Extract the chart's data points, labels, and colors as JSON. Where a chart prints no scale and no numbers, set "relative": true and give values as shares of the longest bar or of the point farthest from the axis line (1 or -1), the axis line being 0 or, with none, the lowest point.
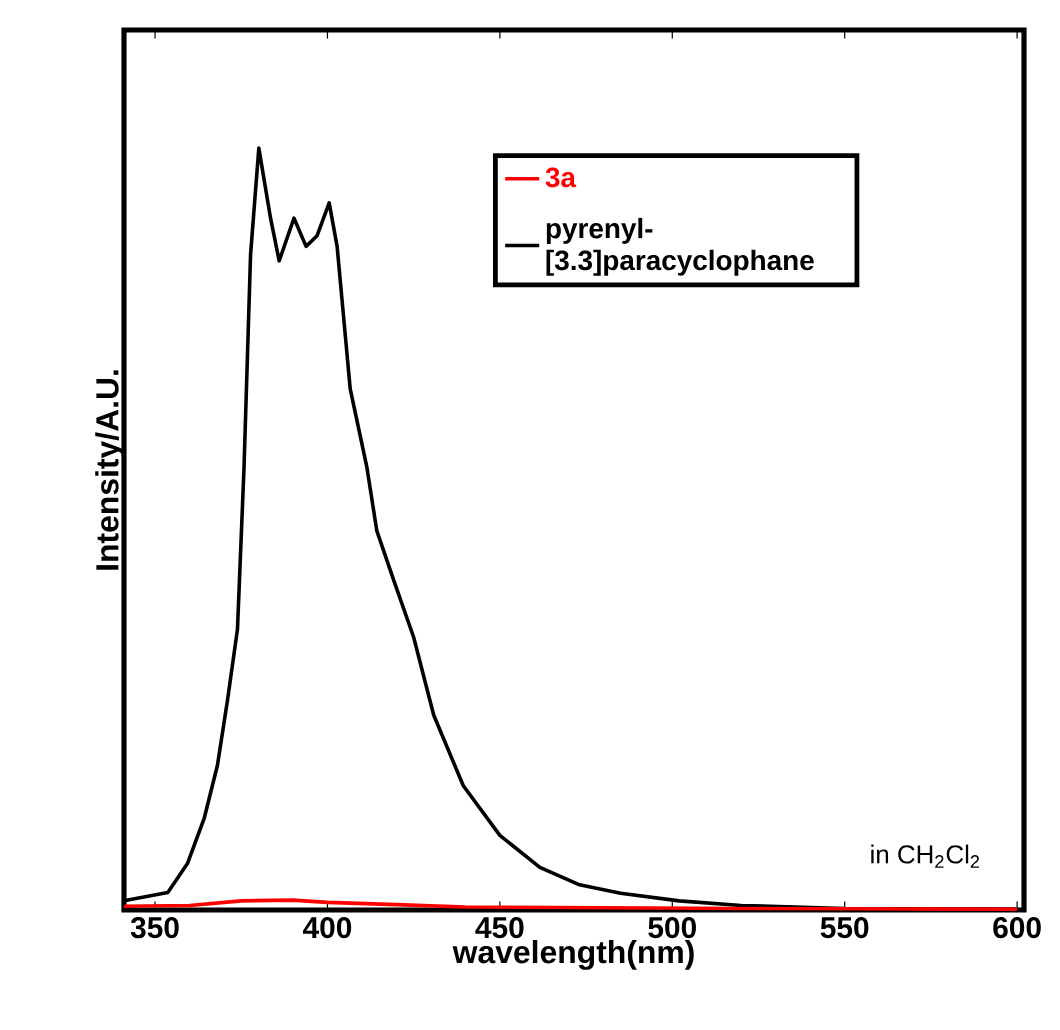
{
  "chart_data": {
    "type": "line",
    "xlabel": "wavelength(nm)",
    "ylabel": "Intensity/A.U.",
    "relative": true,
    "xlim": [
      341,
      602
    ],
    "xticks": [
      350,
      400,
      450,
      500,
      550,
      600
    ],
    "legend": "top right",
    "marker": "none",
    "line_style": "solid",
    "grid": false,
    "annotations": [
      "in CH$_{2}$Cl$_{2}$"
    ],
    "series": [
      {
        "name": "3a",
        "color": "#ff0000",
        "x": [
          341,
          360,
          375,
          390,
          400,
          420,
          440,
          480,
          520,
          600
        ],
        "values": [
          0.005,
          0.006,
          0.012,
          0.013,
          0.01,
          0.007,
          0.004,
          0.003,
          0.002,
          0.001
        ]
      },
      {
        "name": "pyrenyl-[3.3]paracyclophane",
        "color": "#000000",
        "x": [
          341,
          353.7,
          359.4,
          364.3,
          368.1,
          371.0,
          373.9,
          375.8,
          377.7,
          380.1,
          383.5,
          386.0,
          390.3,
          393.8,
          397.0,
          400.5,
          402.8,
          406.6,
          411.4,
          414.3,
          419.2,
          425.0,
          430.8,
          439.4,
          450,
          461.6,
          473.1,
          485,
          502,
          520,
          550,
          600
        ],
        "values": [
          0.012,
          0.023,
          0.061,
          0.121,
          0.19,
          0.275,
          0.368,
          0.58,
          0.86,
          1.0,
          0.908,
          0.852,
          0.908,
          0.871,
          0.885,
          0.928,
          0.871,
          0.684,
          0.582,
          0.498,
          0.433,
          0.358,
          0.256,
          0.163,
          0.098,
          0.056,
          0.033,
          0.022,
          0.012,
          0.006,
          0.002,
          0.001
        ]
      }
    ]
  }
}
